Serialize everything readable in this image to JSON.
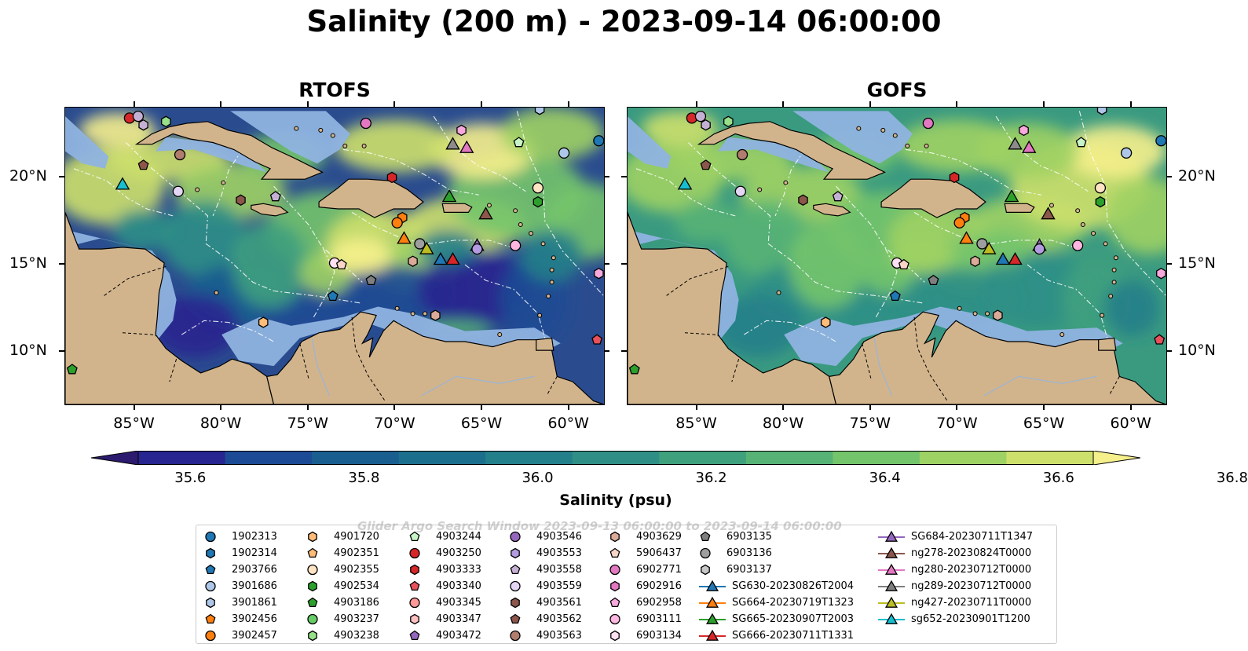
{
  "title": "Salinity (200 m) - 2023-09-14 06:00:00",
  "panels": [
    {
      "title": "RTOFS",
      "palette": "rtofs"
    },
    {
      "title": "GOFS",
      "palette": "gofs"
    }
  ],
  "axes": {
    "lon_ticks": [
      "85°W",
      "80°W",
      "75°W",
      "70°W",
      "65°W",
      "60°W"
    ],
    "lat_ticks": [
      "20°N",
      "15°N",
      "10°N"
    ]
  },
  "colorbar": {
    "label": "Salinity (psu)",
    "ticks": [
      "35.6",
      "35.8",
      "36.0",
      "36.2",
      "36.4",
      "36.6",
      "36.8"
    ],
    "colors": [
      "#2b1a6e",
      "#27258f",
      "#1d4a94",
      "#1a5e8f",
      "#1b6f8d",
      "#237f8a",
      "#2f8f86",
      "#3fa07e",
      "#57b275",
      "#74c46b",
      "#9ed264",
      "#cde06c",
      "#f6f08c"
    ]
  },
  "legend": {
    "watermark": "Glider Argo Search Window 2023-09-13 06:00:00 to 2023-09-14 06:00:00",
    "columns": [
      [
        {
          "label": "1902313",
          "shape": "circle",
          "color": "#1f77b4"
        },
        {
          "label": "1902314",
          "shape": "hexagon",
          "color": "#1f77b4"
        },
        {
          "label": "2903766",
          "shape": "pentagon",
          "color": "#1f77b4"
        },
        {
          "label": "3901686",
          "shape": "circle",
          "color": "#aec7e8"
        },
        {
          "label": "3901861",
          "shape": "hexagon",
          "color": "#aec7e8"
        },
        {
          "label": "3902456",
          "shape": "pentagon",
          "color": "#ff7f0e"
        },
        {
          "label": "3902457",
          "shape": "circle",
          "color": "#ff7f0e"
        }
      ],
      [
        {
          "label": "4901720",
          "shape": "hexagon",
          "color": "#ffbb78"
        },
        {
          "label": "4902351",
          "shape": "pentagon",
          "color": "#ffbb78"
        },
        {
          "label": "4902355",
          "shape": "circle",
          "color": "#ffe4c4"
        },
        {
          "label": "4902534",
          "shape": "hexagon",
          "color": "#2ca02c"
        },
        {
          "label": "4903186",
          "shape": "pentagon",
          "color": "#2ca02c"
        },
        {
          "label": "4903237",
          "shape": "circle",
          "color": "#66cc66"
        },
        {
          "label": "4903238",
          "shape": "hexagon",
          "color": "#98df8a"
        }
      ],
      [
        {
          "label": "4903244",
          "shape": "pentagon",
          "color": "#c7f5c7"
        },
        {
          "label": "4903250",
          "shape": "circle",
          "color": "#d62728"
        },
        {
          "label": "4903333",
          "shape": "hexagon",
          "color": "#d62728"
        },
        {
          "label": "4903340",
          "shape": "pentagon",
          "color": "#e8505b"
        },
        {
          "label": "4903345",
          "shape": "circle",
          "color": "#ff9896"
        },
        {
          "label": "4903347",
          "shape": "hexagon",
          "color": "#ffc0c0"
        },
        {
          "label": "4903472",
          "shape": "pentagon",
          "color": "#9467bd"
        }
      ],
      [
        {
          "label": "4903546",
          "shape": "circle",
          "color": "#9467bd"
        },
        {
          "label": "4903553",
          "shape": "hexagon",
          "color": "#b39be0"
        },
        {
          "label": "4903558",
          "shape": "pentagon",
          "color": "#c5b0d5"
        },
        {
          "label": "4903559",
          "shape": "circle",
          "color": "#e5d5f5"
        },
        {
          "label": "4903561",
          "shape": "hexagon",
          "color": "#8c564b"
        },
        {
          "label": "4903562",
          "shape": "pentagon",
          "color": "#8c564b"
        },
        {
          "label": "4903563",
          "shape": "circle",
          "color": "#b07d6e"
        }
      ],
      [
        {
          "label": "4903629",
          "shape": "hexagon",
          "color": "#dbaa98"
        },
        {
          "label": "5906437",
          "shape": "pentagon",
          "color": "#f7d6c8"
        },
        {
          "label": "6902771",
          "shape": "circle",
          "color": "#e377c2"
        },
        {
          "label": "6902916",
          "shape": "hexagon",
          "color": "#e377c2"
        },
        {
          "label": "6902958",
          "shape": "pentagon",
          "color": "#f7a8dc"
        },
        {
          "label": "6903111",
          "shape": "circle",
          "color": "#ffb6e0"
        },
        {
          "label": "6903134",
          "shape": "hexagon",
          "color": "#ffe0f2"
        }
      ],
      [
        {
          "label": "6903135",
          "shape": "pentagon",
          "color": "#7f7f7f"
        },
        {
          "label": "6903136",
          "shape": "circle",
          "color": "#9e9e9e"
        },
        {
          "label": "6903137",
          "shape": "hexagon",
          "color": "#c7c7c7"
        },
        {
          "label": "SG630-20230826T2004",
          "shape": "triangle-line",
          "color": "#1f77b4"
        },
        {
          "label": "SG664-20230719T1323",
          "shape": "triangle-line",
          "color": "#ff7f0e"
        },
        {
          "label": "SG665-20230907T2003",
          "shape": "triangle-line",
          "color": "#2ca02c"
        },
        {
          "label": "SG666-20230711T1331",
          "shape": "triangle-line",
          "color": "#d62728"
        }
      ],
      [
        {
          "label": "SG684-20230711T1347",
          "shape": "triangle-line",
          "color": "#9467bd"
        },
        {
          "label": "ng278-20230824T0000",
          "shape": "triangle-line",
          "color": "#8c564b"
        },
        {
          "label": "ng280-20230712T0000",
          "shape": "triangle-line",
          "color": "#e377c2"
        },
        {
          "label": "ng289-20230712T0000",
          "shape": "triangle-line",
          "color": "#7f7f7f"
        },
        {
          "label": "ng427-20230711T0000",
          "shape": "triangle-line",
          "color": "#bcbd22"
        },
        {
          "label": "sg652-20230901T1200",
          "shape": "triangle-line",
          "color": "#17becf"
        }
      ]
    ]
  },
  "map_colors": {
    "land": "#d2b48c",
    "shelf": "#8fb3e0"
  },
  "markers": [
    {
      "lon": -85.3,
      "lat": 23.4,
      "shape": "circle",
      "color": "#d62728"
    },
    {
      "lon": -84.8,
      "lat": 23.5,
      "shape": "circle",
      "color": "#c5b0d5"
    },
    {
      "lon": -84.5,
      "lat": 23.0,
      "shape": "hexagon",
      "color": "#c5b0d5"
    },
    {
      "lon": -83.2,
      "lat": 23.2,
      "shape": "hexagon",
      "color": "#98df8a"
    },
    {
      "lon": -82.4,
      "lat": 21.3,
      "shape": "circle",
      "color": "#b07d6e"
    },
    {
      "lon": -84.5,
      "lat": 20.7,
      "shape": "pentagon",
      "color": "#8c564b"
    },
    {
      "lon": -85.7,
      "lat": 19.6,
      "shape": "triangle",
      "color": "#17becf"
    },
    {
      "lon": -82.5,
      "lat": 19.2,
      "shape": "circle",
      "color": "#e5d5f5"
    },
    {
      "lon": -78.9,
      "lat": 18.7,
      "shape": "hexagon",
      "color": "#8c564b"
    },
    {
      "lon": -76.9,
      "lat": 18.9,
      "shape": "pentagon",
      "color": "#c5b0d5"
    },
    {
      "lon": -71.7,
      "lat": 23.1,
      "shape": "circle",
      "color": "#e377c2"
    },
    {
      "lon": -70.2,
      "lat": 20.0,
      "shape": "hexagon",
      "color": "#d62728"
    },
    {
      "lon": -66.2,
      "lat": 22.7,
      "shape": "hexagon",
      "color": "#f7a8dc"
    },
    {
      "lon": -66.7,
      "lat": 21.9,
      "shape": "triangle",
      "color": "#8c8c8c"
    },
    {
      "lon": -65.9,
      "lat": 21.7,
      "shape": "triangle",
      "color": "#e377c2"
    },
    {
      "lon": -62.9,
      "lat": 22.0,
      "shape": "pentagon",
      "color": "#c7f5c7"
    },
    {
      "lon": -61.7,
      "lat": 23.9,
      "shape": "hexagon",
      "color": "#aec7e8"
    },
    {
      "lon": -60.3,
      "lat": 21.4,
      "shape": "circle",
      "color": "#aec7e8"
    },
    {
      "lon": -58.3,
      "lat": 22.1,
      "shape": "circle",
      "color": "#1f77b4"
    },
    {
      "lon": -61.8,
      "lat": 19.4,
      "shape": "circle",
      "color": "#ffe4c4"
    },
    {
      "lon": -61.8,
      "lat": 18.6,
      "shape": "hexagon",
      "color": "#2ca02c"
    },
    {
      "lon": -66.9,
      "lat": 18.9,
      "shape": "triangle",
      "color": "#2ca02c"
    },
    {
      "lon": -64.8,
      "lat": 17.9,
      "shape": "triangle",
      "color": "#8c564b"
    },
    {
      "lon": -69.6,
      "lat": 17.7,
      "shape": "hexagon",
      "color": "#ff7f0e"
    },
    {
      "lon": -69.9,
      "lat": 17.4,
      "shape": "circle",
      "color": "#ff7f0e"
    },
    {
      "lon": -69.5,
      "lat": 16.5,
      "shape": "triangle",
      "color": "#ff7f0e"
    },
    {
      "lon": -68.6,
      "lat": 16.2,
      "shape": "circle",
      "color": "#9e9e9e"
    },
    {
      "lon": -68.2,
      "lat": 15.9,
      "shape": "triangle",
      "color": "#bcbd22"
    },
    {
      "lon": -67.4,
      "lat": 15.3,
      "shape": "triangle",
      "color": "#1f77b4"
    },
    {
      "lon": -66.7,
      "lat": 15.3,
      "shape": "triangle",
      "color": "#d62728"
    },
    {
      "lon": -65.3,
      "lat": 16.1,
      "shape": "triangle",
      "color": "#9467bd"
    },
    {
      "lon": -65.3,
      "lat": 15.9,
      "shape": "circle",
      "color": "#b39be0"
    },
    {
      "lon": -63.1,
      "lat": 16.1,
      "shape": "circle",
      "color": "#ffb6e0"
    },
    {
      "lon": -69.0,
      "lat": 15.2,
      "shape": "hexagon",
      "color": "#dbaa98"
    },
    {
      "lon": -73.5,
      "lat": 15.1,
      "shape": "circle",
      "color": "#ffe0f2"
    },
    {
      "lon": -73.1,
      "lat": 15.0,
      "shape": "pentagon",
      "color": "#f7d6c8"
    },
    {
      "lon": -71.4,
      "lat": 14.1,
      "shape": "pentagon",
      "color": "#7f7f7f"
    },
    {
      "lon": -73.6,
      "lat": 13.2,
      "shape": "pentagon",
      "color": "#1f77b4"
    },
    {
      "lon": -77.6,
      "lat": 11.7,
      "shape": "hexagon",
      "color": "#ffbb78"
    },
    {
      "lon": -67.7,
      "lat": 12.1,
      "shape": "hexagon",
      "color": "#dbaa98"
    },
    {
      "lon": -58.3,
      "lat": 14.5,
      "shape": "hexagon",
      "color": "#f7a8dc"
    },
    {
      "lon": -57.7,
      "lat": 13.5,
      "shape": "hexagon",
      "color": "#f7a8dc"
    },
    {
      "lon": -58.4,
      "lat": 10.7,
      "shape": "pentagon",
      "color": "#e8505b"
    },
    {
      "lon": -88.6,
      "lat": 9.0,
      "shape": "pentagon",
      "color": "#2ca02c"
    }
  ]
}
